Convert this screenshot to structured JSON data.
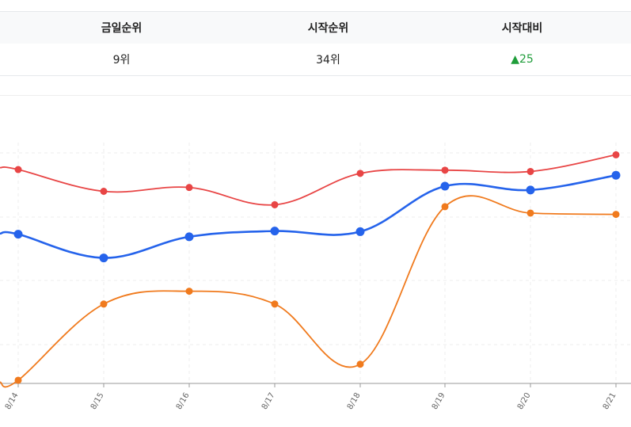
{
  "rank_table": {
    "headers": [
      "금일순위",
      "시작순위",
      "시작대비"
    ],
    "today_rank": "9위",
    "start_rank": "34위",
    "change_arrow": "▲",
    "change_value": "25",
    "change_color": "#1f9d3a"
  },
  "chart_data": {
    "type": "line",
    "title": "",
    "xlabel": "",
    "ylabel": "",
    "categories": [
      "8/14",
      "8/15",
      "8/16",
      "8/17",
      "8/18",
      "8/19",
      "8/20",
      "8/21"
    ],
    "grid": true,
    "ylim": [
      0,
      36
    ],
    "series": [
      {
        "color": "#e84545",
        "values": [
          33.4,
          30.0,
          30.6,
          27.9,
          32.8,
          33.3,
          33.1,
          35.7
        ],
        "leading_value": 33.7
      },
      {
        "color": "#2563eb",
        "values": [
          23.3,
          19.6,
          22.9,
          23.8,
          23.7,
          30.8,
          30.2,
          32.5
        ],
        "leading_value": 23.4
      },
      {
        "color": "#f07a1d",
        "values": [
          0.5,
          12.4,
          14.4,
          12.4,
          3.0,
          27.6,
          26.6,
          26.4
        ],
        "leading_value": 0.2
      }
    ]
  }
}
